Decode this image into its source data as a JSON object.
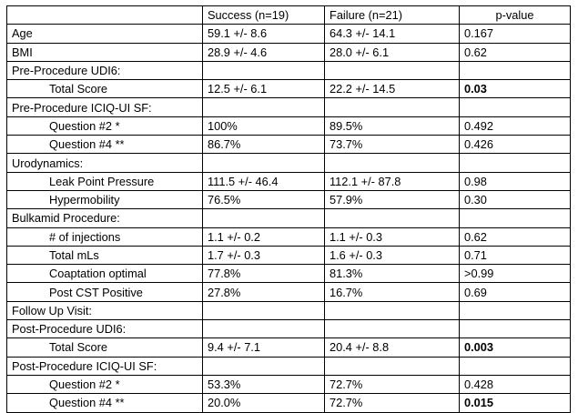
{
  "table": {
    "headers": [
      "",
      "Success (n=19)",
      "Failure (n=21)",
      "p-value"
    ],
    "rows": [
      {
        "label": "Age",
        "indent": false,
        "success": "59.1 +/- 8.6",
        "failure": "64.3 +/- 14.1",
        "p": "0.167",
        "p_bold": false
      },
      {
        "label": "BMI",
        "indent": false,
        "success": "28.9 +/- 4.6",
        "failure": "28.0 +/- 6.1",
        "p": "0.62",
        "p_bold": false
      },
      {
        "label": "Pre-Procedure UDI6:",
        "indent": false,
        "success": "",
        "failure": "",
        "p": "",
        "p_bold": false
      },
      {
        "label": "Total Score",
        "indent": true,
        "success": "12.5 +/- 6.1",
        "failure": "22.2 +/- 14.5",
        "p": "0.03",
        "p_bold": true
      },
      {
        "label": "Pre-Procedure ICIQ-UI SF:",
        "indent": false,
        "success": "",
        "failure": "",
        "p": "",
        "p_bold": false
      },
      {
        "label": "Question #2 *",
        "indent": true,
        "success": "100%",
        "failure": "89.5%",
        "p": "0.492",
        "p_bold": false
      },
      {
        "label": "Question #4 **",
        "indent": true,
        "success": "86.7%",
        "failure": "73.7%",
        "p": "0.426",
        "p_bold": false
      },
      {
        "label": "Urodynamics:",
        "indent": false,
        "success": "",
        "failure": "",
        "p": "",
        "p_bold": false
      },
      {
        "label": "Leak Point Pressure",
        "indent": true,
        "success": "111.5 +/- 46.4",
        "failure": "112.1 +/- 87.8",
        "p": "0.98",
        "p_bold": false
      },
      {
        "label": "Hypermobility",
        "indent": true,
        "success": "76.5%",
        "failure": "57.9%",
        "p": "0.30",
        "p_bold": false
      },
      {
        "label": "Bulkamid Procedure:",
        "indent": false,
        "success": "",
        "failure": "",
        "p": "",
        "p_bold": false
      },
      {
        "label": "# of injections",
        "indent": true,
        "success": "1.1 +/- 0.2",
        "failure": "1.1 +/- 0.3",
        "p": "0.62",
        "p_bold": false
      },
      {
        "label": "Total mLs",
        "indent": true,
        "success": "1.7 +/- 0.3",
        "failure": "1.6 +/- 0.3",
        "p": "0.71",
        "p_bold": false
      },
      {
        "label": "Coaptation optimal",
        "indent": true,
        "success": "77.8%",
        "failure": "81.3%",
        "p": ">0.99",
        "p_bold": false
      },
      {
        "label": "Post CST Positive",
        "indent": true,
        "success": "27.8%",
        "failure": "16.7%",
        "p": "0.69",
        "p_bold": false
      },
      {
        "label": "Follow Up Visit:",
        "indent": false,
        "success": "",
        "failure": "",
        "p": "",
        "p_bold": false
      },
      {
        "label": "Post-Procedure UDI6:",
        "indent": false,
        "success": "",
        "failure": "",
        "p": "",
        "p_bold": false
      },
      {
        "label": "Total Score",
        "indent": true,
        "success": "9.4 +/- 7.1",
        "failure": "20.4 +/- 8.8",
        "p": "0.003",
        "p_bold": true
      },
      {
        "label": "Post-Procedure ICIQ-UI SF:",
        "indent": false,
        "success": "",
        "failure": "",
        "p": "",
        "p_bold": false
      },
      {
        "label": "Question #2 *",
        "indent": true,
        "success": "53.3%",
        "failure": "72.7%",
        "p": "0.428",
        "p_bold": false
      },
      {
        "label": "Question #4 **",
        "indent": true,
        "success": "20.0%",
        "failure": "72.7%",
        "p": "0.015",
        "p_bold": true
      }
    ]
  }
}
